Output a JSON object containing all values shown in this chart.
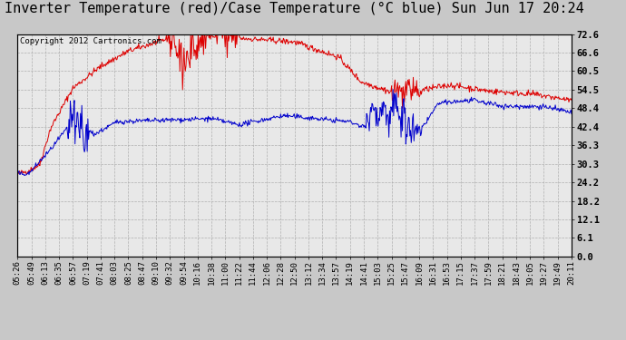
{
  "title": "Inverter Temperature (red)/Case Temperature (°C blue) Sun Jun 17 20:24",
  "copyright": "Copyright 2012 Cartronics.com",
  "y_ticks": [
    0.0,
    6.1,
    12.1,
    18.2,
    24.2,
    30.3,
    36.3,
    42.4,
    48.4,
    54.5,
    60.5,
    66.6,
    72.6
  ],
  "y_min": 0.0,
  "y_max": 72.6,
  "x_labels": [
    "05:26",
    "05:49",
    "06:13",
    "06:35",
    "06:57",
    "07:19",
    "07:41",
    "08:03",
    "08:25",
    "08:47",
    "09:10",
    "09:32",
    "09:54",
    "10:16",
    "10:38",
    "11:00",
    "11:22",
    "11:44",
    "12:06",
    "12:28",
    "12:50",
    "13:12",
    "13:34",
    "13:57",
    "14:19",
    "14:41",
    "15:03",
    "15:25",
    "15:47",
    "16:09",
    "16:31",
    "16:53",
    "17:15",
    "17:37",
    "17:59",
    "18:21",
    "18:43",
    "19:05",
    "19:27",
    "19:49",
    "20:11"
  ],
  "outer_bg_color": "#c8c8c8",
  "plot_bg_color": "#e8e8e8",
  "grid_color": "#aaaaaa",
  "line_red_color": "#dd0000",
  "line_blue_color": "#0000cc",
  "title_fontsize": 11,
  "tick_fontsize": 6.5,
  "copyright_fontsize": 6.5
}
